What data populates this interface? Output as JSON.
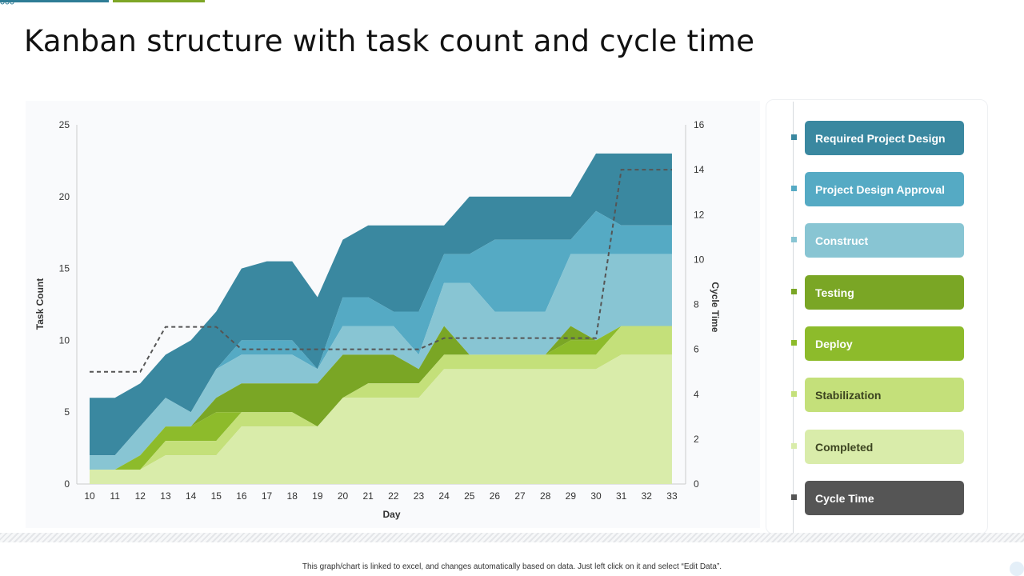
{
  "title": "Kanban structure with task count and cycle time",
  "footnote": "This graph/chart is linked to excel, and changes automatically based on data. Just left click on it and select “Edit Data”.",
  "colors": {
    "series": [
      "#3a88a0",
      "#55aac4",
      "#88c5d3",
      "#7aa625",
      "#8dbb2b",
      "#c4e07a",
      "#d9ecaa"
    ],
    "cycle_time": "#555555",
    "grid_line": "#cccccc",
    "text": "#333333"
  },
  "legend": [
    {
      "label": "Required Project Design",
      "color": "#3a88a0",
      "marker": "#3a88a0",
      "text_color": "#ffffff"
    },
    {
      "label": "Project Design Approval",
      "color": "#55aac4",
      "marker": "#55aac4",
      "text_color": "#ffffff"
    },
    {
      "label": "Construct",
      "color": "#88c5d3",
      "marker": "#88c5d3",
      "text_color": "#ffffff"
    },
    {
      "label": "Testing",
      "color": "#7aa625",
      "marker": "#7aa625",
      "text_color": "#ffffff"
    },
    {
      "label": "Deploy",
      "color": "#8dbb2b",
      "marker": "#8dbb2b",
      "text_color": "#ffffff"
    },
    {
      "label": "Stabilization",
      "color": "#c4e07a",
      "marker": "#c4e07a",
      "text_color": "#3c4420"
    },
    {
      "label": "Completed",
      "color": "#d9ecaa",
      "marker": "#d9ecaa",
      "text_color": "#3c4420"
    },
    {
      "label": "Cycle Time",
      "color": "#555555",
      "marker": "#555555",
      "text_color": "#ffffff"
    }
  ],
  "chart_data": {
    "type": "area",
    "stacked": true,
    "title": "",
    "xlabel": "Day",
    "ylabel": "Task Count",
    "y2label": "Cycle Time",
    "categories": [
      "10",
      "11",
      "12",
      "13",
      "14",
      "15",
      "16",
      "17",
      "18",
      "19",
      "20",
      "21",
      "22",
      "23",
      "24",
      "25",
      "26",
      "27",
      "28",
      "29",
      "30",
      "31",
      "32",
      "33"
    ],
    "ylim": [
      0,
      25
    ],
    "yticks": [
      0,
      5,
      10,
      15,
      20,
      25
    ],
    "y2lim": [
      0,
      16
    ],
    "y2ticks": [
      0,
      2,
      4,
      6,
      8,
      10,
      12,
      14,
      16
    ],
    "series": [
      {
        "name": "Completed",
        "values": [
          1,
          1,
          1,
          2,
          2,
          2,
          4,
          4,
          4,
          4,
          6,
          6,
          6,
          6,
          8,
          8,
          8,
          8,
          8,
          8,
          8,
          9,
          9,
          9
        ]
      },
      {
        "name": "Stabilization",
        "values": [
          0,
          0,
          0,
          1,
          1,
          1,
          1,
          1,
          1,
          0,
          0,
          1,
          1,
          1,
          1,
          1,
          1,
          1,
          1,
          1,
          1,
          2,
          2,
          2
        ]
      },
      {
        "name": "Deploy",
        "values": [
          0,
          0,
          1,
          1,
          1,
          2,
          0,
          0,
          0,
          0,
          0,
          0,
          0,
          0,
          0,
          0,
          0,
          0,
          0,
          1,
          1,
          0,
          0,
          0
        ]
      },
      {
        "name": "Testing",
        "values": [
          0,
          0,
          0,
          0,
          0,
          1,
          2,
          2,
          2,
          3,
          3,
          2,
          2,
          1,
          2,
          0,
          0,
          0,
          0,
          1,
          0,
          0,
          0,
          0
        ]
      },
      {
        "name": "Construct",
        "values": [
          1,
          1,
          2,
          2,
          1,
          2,
          2,
          2,
          2,
          1,
          2,
          2,
          2,
          1,
          3,
          5,
          3,
          3,
          3,
          5,
          6,
          5,
          5,
          5
        ]
      },
      {
        "name": "Project Design Approval",
        "values": [
          0,
          0,
          0,
          0,
          0,
          0,
          1,
          1,
          1,
          0,
          2,
          2,
          1,
          3,
          2,
          2,
          5,
          5,
          5,
          1,
          3,
          2,
          2,
          2
        ]
      },
      {
        "name": "Required Project Design",
        "values": [
          4,
          4,
          3,
          3,
          5,
          4,
          5,
          5.5,
          5.5,
          5,
          4,
          5,
          6,
          6,
          2,
          4,
          3,
          3,
          3,
          3,
          4,
          5,
          5,
          5
        ]
      }
    ],
    "line": {
      "name": "Cycle Time",
      "axis": "secondary",
      "style": "dashed",
      "values": [
        5,
        5,
        5,
        7,
        7,
        7,
        6,
        6,
        6,
        6,
        6,
        6,
        6,
        6,
        6.5,
        6.5,
        6.5,
        6.5,
        6.5,
        6.5,
        6.5,
        14,
        14,
        14
      ]
    }
  }
}
